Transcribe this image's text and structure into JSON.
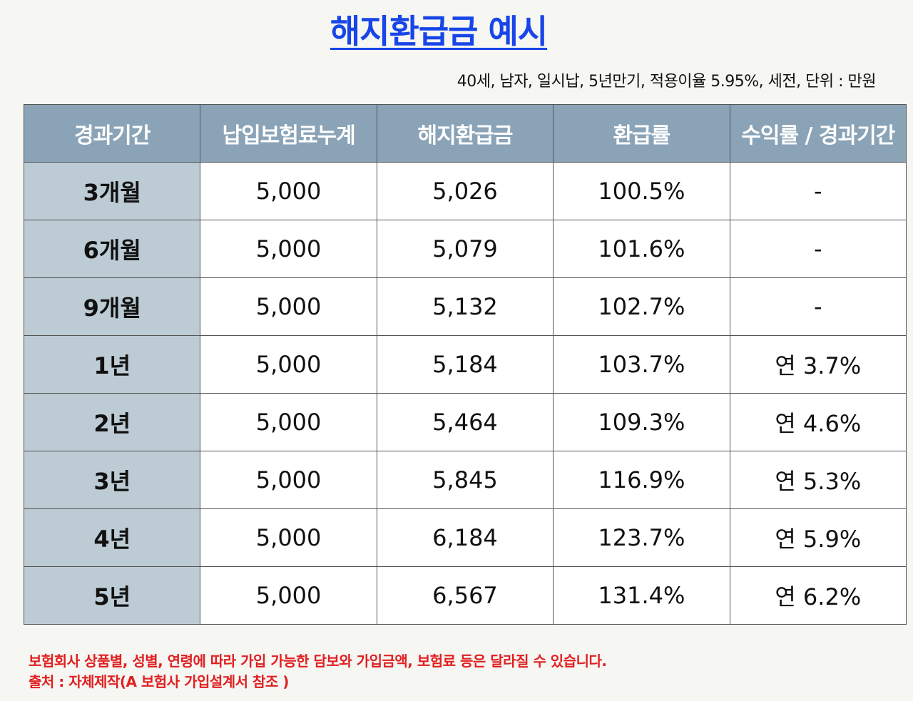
{
  "title": "해지환급금 예시",
  "subtitle": "40세, 남자, 일시납, 5년만기, 적용이율 5.95%, 세전, 단위 : 만원",
  "table": {
    "headers": [
      "경과기간",
      "납입보험료누계",
      "해지환급금",
      "환급률",
      "수익률 / 경과기간"
    ],
    "rows": [
      [
        "3개월",
        "5,000",
        "5,026",
        "100.5%",
        "-"
      ],
      [
        "6개월",
        "5,000",
        "5,079",
        "101.6%",
        "-"
      ],
      [
        "9개월",
        "5,000",
        "5,132",
        "102.7%",
        "-"
      ],
      [
        "1년",
        "5,000",
        "5,184",
        "103.7%",
        "연 3.7%"
      ],
      [
        "2년",
        "5,000",
        "5,464",
        "109.3%",
        "연 4.6%"
      ],
      [
        "3년",
        "5,000",
        "5,845",
        "116.9%",
        "연 5.3%"
      ],
      [
        "4년",
        "5,000",
        "6,184",
        "123.7%",
        "연 5.9%"
      ],
      [
        "5년",
        "5,000",
        "6,567",
        "131.4%",
        "연 6.2%"
      ]
    ]
  },
  "footnotes": {
    "line1": "보험회사 상품별, 성별, 연령에 따라 가입 가능한 담보와 가입금액, 보험료 등은 달라질 수 있습니다.",
    "line2": "출처 : 자체제작(A 보험사 가입설계서 참조 )"
  }
}
